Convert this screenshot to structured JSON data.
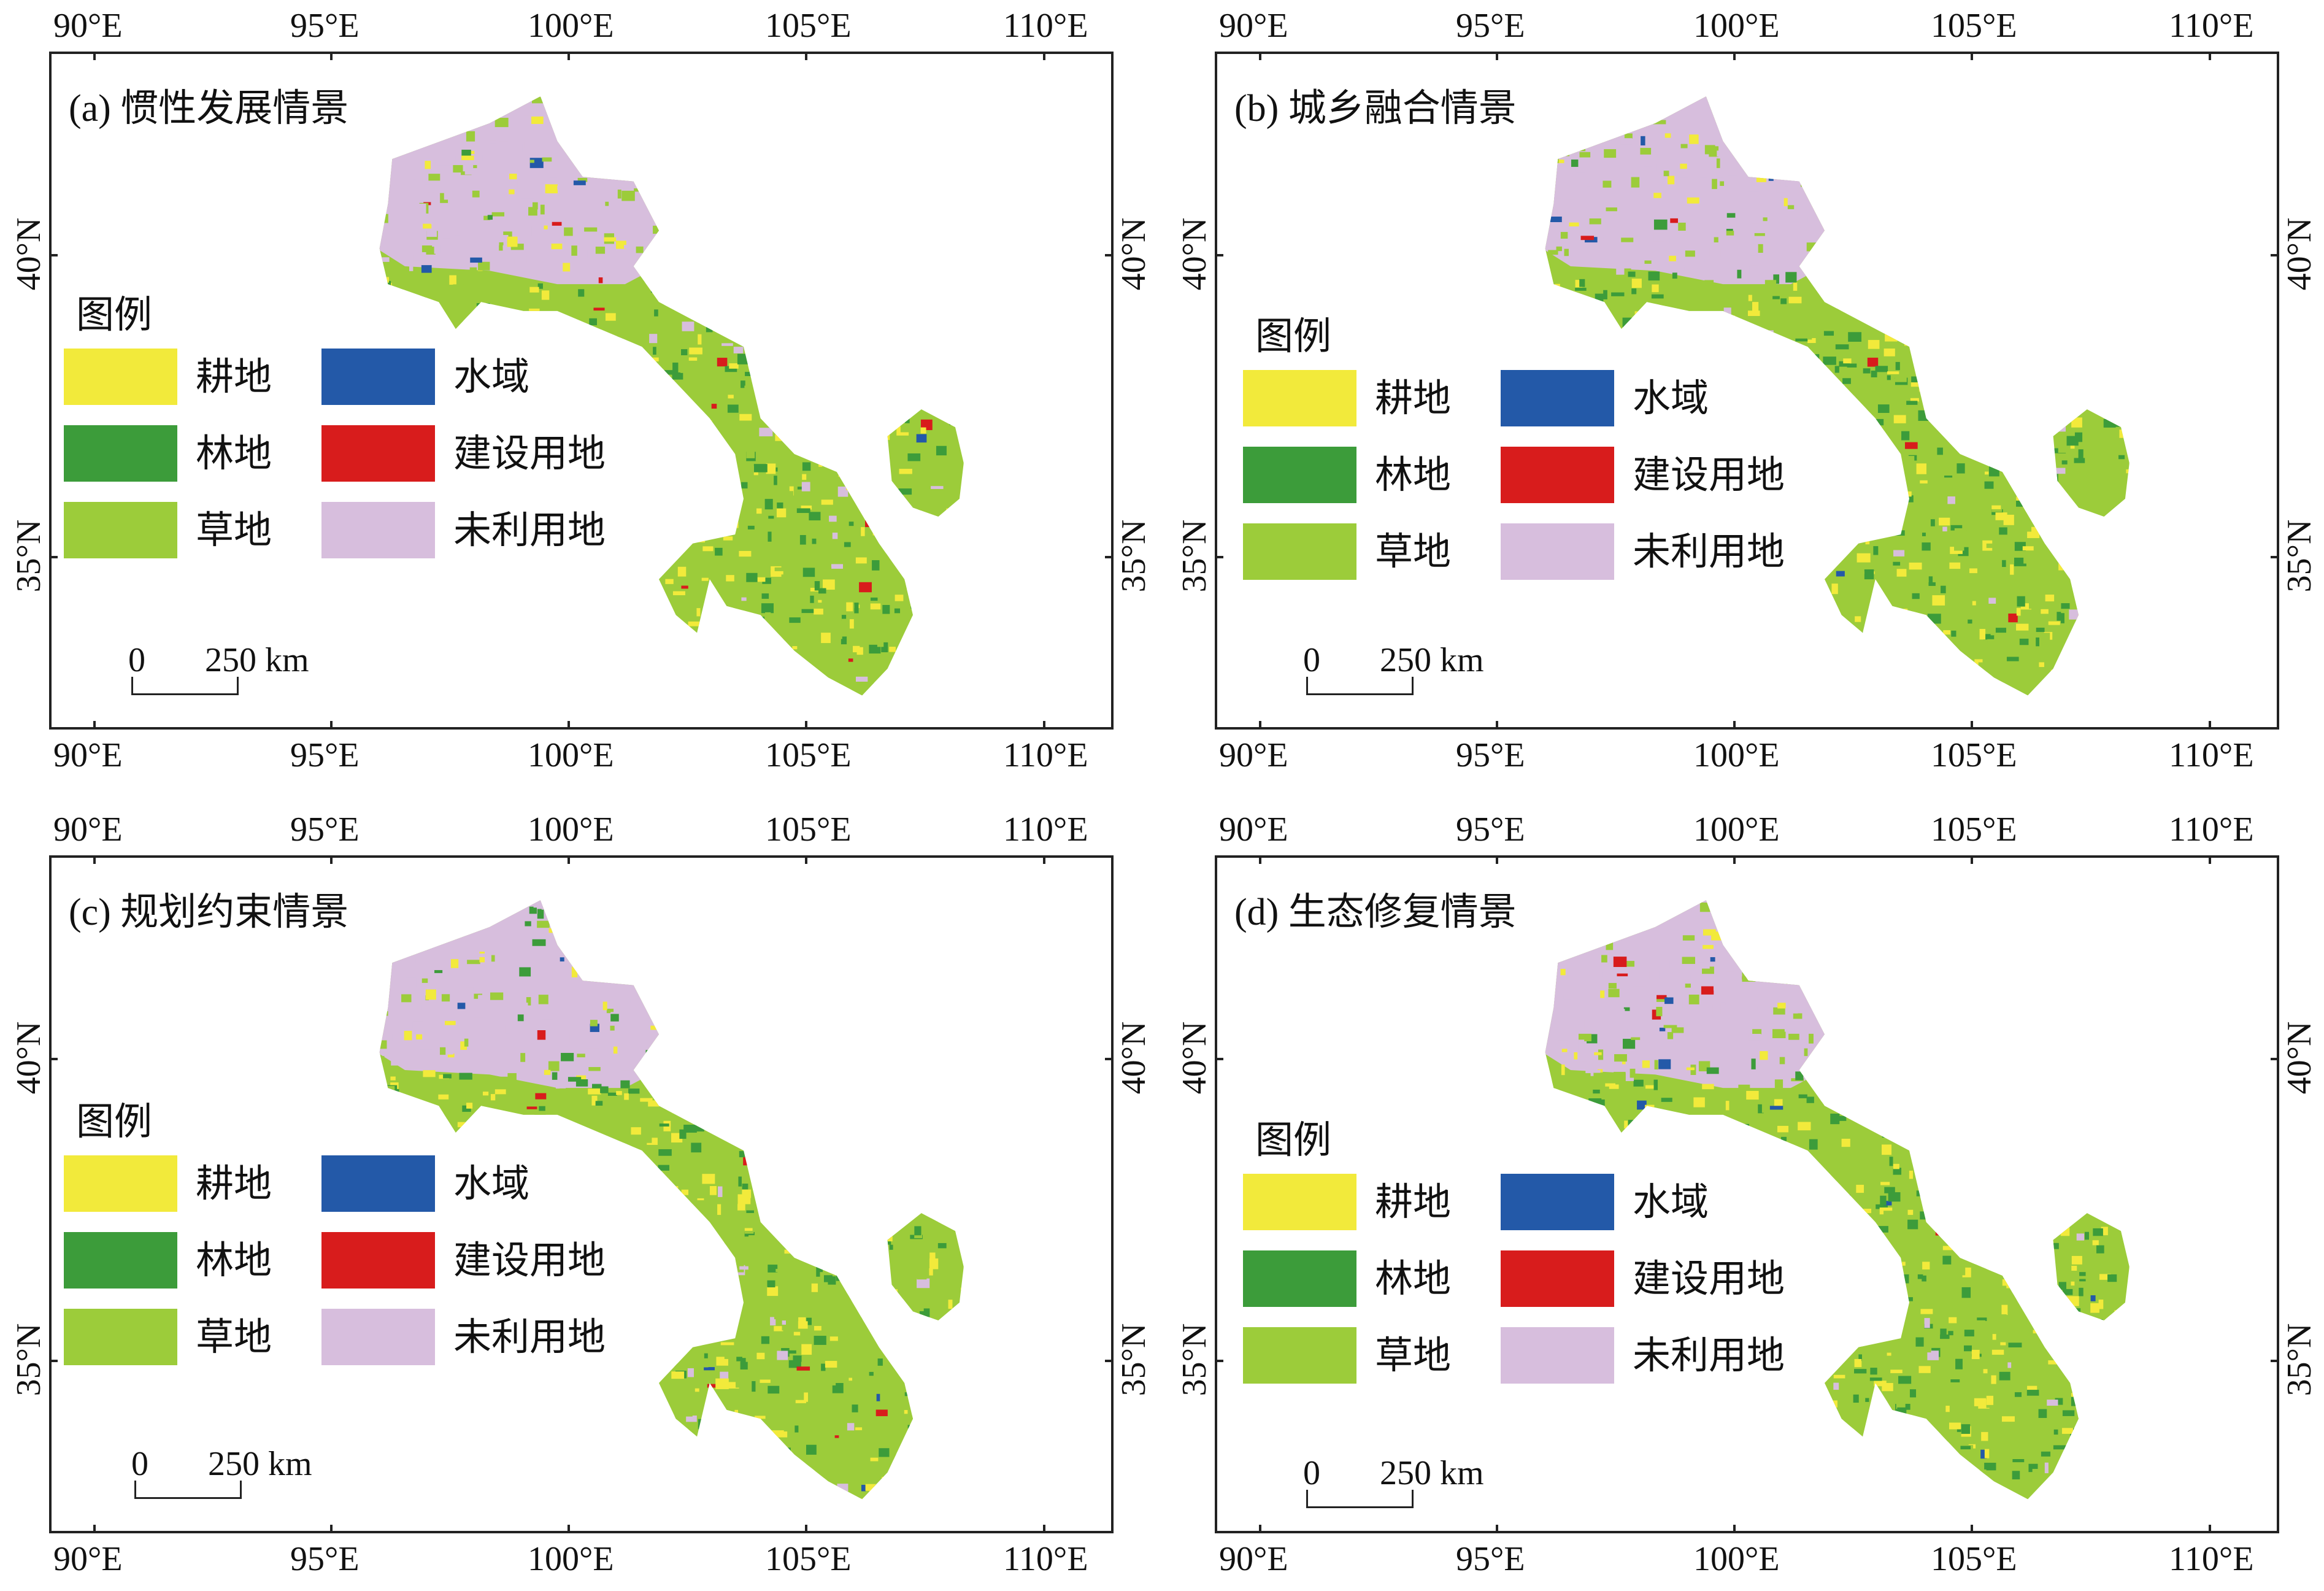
{
  "axes": {
    "lon_labels": [
      "90°E",
      "95°E",
      "100°E",
      "105°E",
      "110°E"
    ],
    "lat_labels": [
      "40°N",
      "35°N"
    ]
  },
  "panels": [
    {
      "title": "(a) 惯性发展情景"
    },
    {
      "title": "(b) 城乡融合情景"
    },
    {
      "title": "(c) 规划约束情景"
    },
    {
      "title": "(d) 生态修复情景"
    }
  ],
  "legend": {
    "title": "图例",
    "items": [
      {
        "label": "耕地",
        "color": "#f2ea3b"
      },
      {
        "label": "水域",
        "color": "#2359a8"
      },
      {
        "label": "林地",
        "color": "#3c9c3a"
      },
      {
        "label": "建设用地",
        "color": "#d81c1c"
      },
      {
        "label": "草地",
        "color": "#9ccc3a"
      },
      {
        "label": "未利用地",
        "color": "#d7bedd"
      }
    ]
  },
  "scalebar": {
    "start": "0",
    "end": "250 km"
  }
}
